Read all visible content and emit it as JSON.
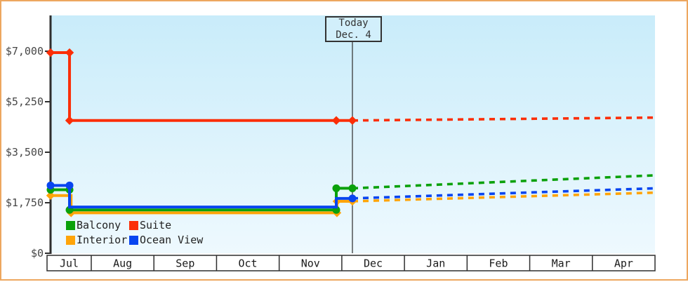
{
  "window": {
    "title": "Cruise price history chart"
  },
  "chart_data": {
    "type": "line",
    "title": "",
    "x_unit": "timeline fraction of plot width (Jul left edge = 0, Apr right edge = 1)",
    "x_axis": {
      "categories": [
        "Jul",
        "Aug",
        "Sep",
        "Oct",
        "Nov",
        "Dec",
        "Jan",
        "Feb",
        "Mar",
        "Apr"
      ]
    },
    "y_axis": {
      "tick_values": [
        0,
        1750,
        3500,
        5250,
        7000
      ],
      "tick_labels": [
        "$0",
        "$1,750",
        "$3,500",
        "$5,250",
        "$7,000"
      ],
      "currency": "USD"
    },
    "today_marker": {
      "line1": "Today",
      "line2": "Dec. 4",
      "x_fraction": 0.4994
    },
    "grid": false,
    "legend_position": "bottom-left-inside",
    "series": [
      {
        "name": "Balcony",
        "color": "#0ba10b",
        "marker": "circle",
        "solid": [
          [
            0.0,
            2200
          ],
          [
            0.0314,
            2200
          ],
          [
            0.0314,
            1500
          ],
          [
            0.4727,
            1500
          ],
          [
            0.4727,
            2250
          ],
          [
            0.4994,
            2250
          ]
        ],
        "dashed": [
          [
            0.4994,
            2250
          ],
          [
            1.0,
            2700
          ]
        ],
        "markers": [
          [
            0.0,
            2200
          ],
          [
            0.0314,
            2200
          ],
          [
            0.0314,
            1500
          ],
          [
            0.4727,
            1500
          ],
          [
            0.4727,
            2250
          ],
          [
            0.4994,
            2250
          ]
        ]
      },
      {
        "name": "Suite",
        "color": "#fb2e07",
        "marker": "diamond",
        "solid": [
          [
            0.0,
            6950
          ],
          [
            0.0314,
            6950
          ],
          [
            0.0314,
            4600
          ],
          [
            0.4994,
            4600
          ]
        ],
        "dashed": [
          [
            0.4994,
            4600
          ],
          [
            1.0,
            4700
          ]
        ],
        "markers": [
          [
            0.0,
            6950
          ],
          [
            0.0314,
            6950
          ],
          [
            0.0314,
            4600
          ],
          [
            0.4727,
            4600
          ],
          [
            0.4994,
            4600
          ]
        ]
      },
      {
        "name": "Interior",
        "color": "#ffa408",
        "marker": "diamond",
        "solid": [
          [
            0.0,
            2000
          ],
          [
            0.034,
            2000
          ],
          [
            0.034,
            1400
          ],
          [
            0.4738,
            1400
          ],
          [
            0.4738,
            1800
          ],
          [
            0.4994,
            1800
          ]
        ],
        "dashed": [
          [
            0.4994,
            1800
          ],
          [
            1.0,
            2100
          ]
        ],
        "markers": [
          [
            0.0,
            2000
          ],
          [
            0.034,
            1400
          ],
          [
            0.4738,
            1400
          ],
          [
            0.4738,
            1800
          ],
          [
            0.4994,
            1800
          ]
        ]
      },
      {
        "name": "Ocean View",
        "color": "#0845f0",
        "marker": "circle",
        "solid": [
          [
            0.0,
            2350
          ],
          [
            0.0314,
            2350
          ],
          [
            0.0314,
            1600
          ],
          [
            0.4727,
            1600
          ],
          [
            0.4727,
            1900
          ],
          [
            0.4994,
            1900
          ]
        ],
        "dashed": [
          [
            0.4994,
            1900
          ],
          [
            1.0,
            2250
          ]
        ],
        "markers": [
          [
            0.0,
            2350
          ],
          [
            0.0314,
            2350
          ],
          [
            0.4994,
            1900
          ]
        ]
      }
    ],
    "colors": {
      "frame_border": "#eda75f",
      "axis": "#2e2e2e",
      "y_label_text": "#474747",
      "month_label_text": "#1a1a1a",
      "today_text": "#333333",
      "plot_bg_top": "#c9ecfa",
      "plot_bg_bottom": "#eef9fe"
    }
  }
}
